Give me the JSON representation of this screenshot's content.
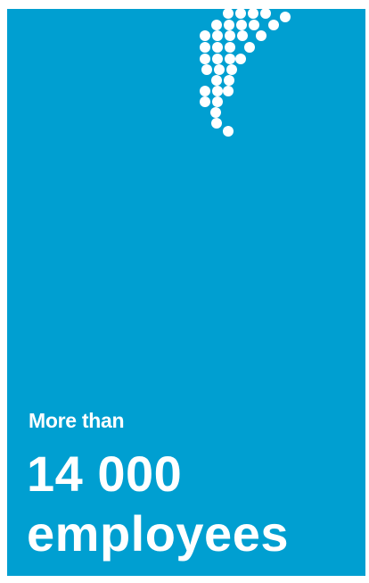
{
  "card": {
    "intro": "More than",
    "figure": "14 000",
    "label": "employees"
  }
}
